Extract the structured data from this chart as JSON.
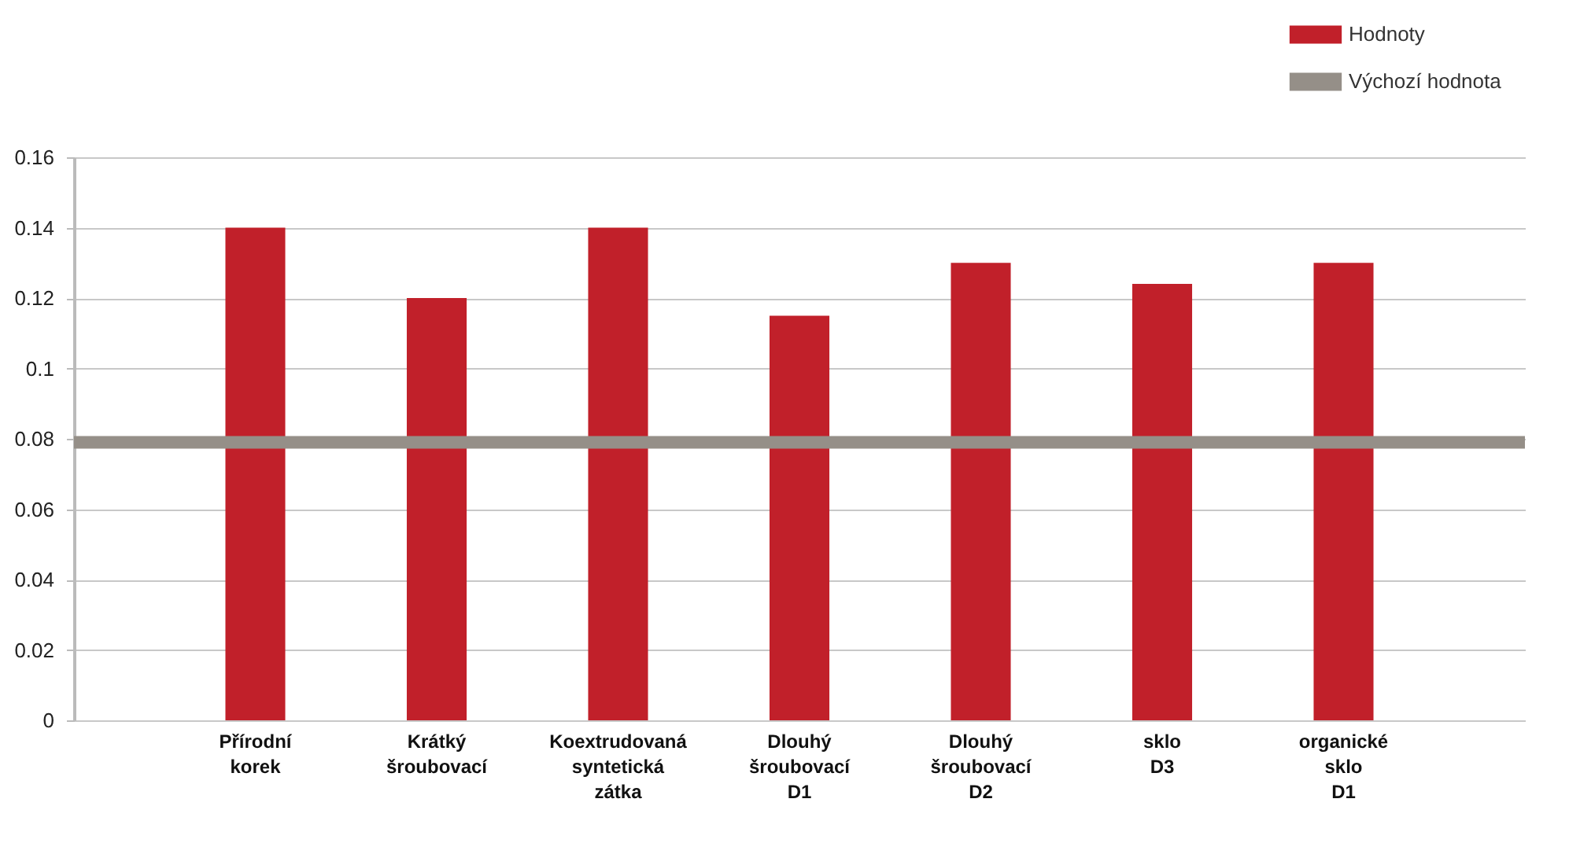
{
  "chart_data": {
    "type": "bar",
    "categories": [
      "Přírodní korek",
      "Krátký šroubovací",
      "Koextrudovaná syntetická zátka",
      "Dlouhý šroubovací D1",
      "Dlouhý šroubovací D2",
      "sklo D3",
      "organické sklo D1"
    ],
    "series": [
      {
        "name": "Hodnoty",
        "color": "#c1202a",
        "values": [
          0.14,
          0.12,
          0.14,
          0.115,
          0.13,
          0.124,
          0.13
        ]
      }
    ],
    "ref_lines": [
      {
        "axis": "y",
        "value": 0.079,
        "label": "Výchozí hodnota",
        "color": "#958f88"
      }
    ],
    "ylim": [
      0,
      0.16
    ],
    "yticks": [
      0,
      0.02,
      0.04,
      0.06,
      0.08,
      {
        "value": 0.1,
        "label": "0.1"
      },
      0.12,
      0.14,
      0.16
    ],
    "grid": "y",
    "legend": "top right"
  }
}
